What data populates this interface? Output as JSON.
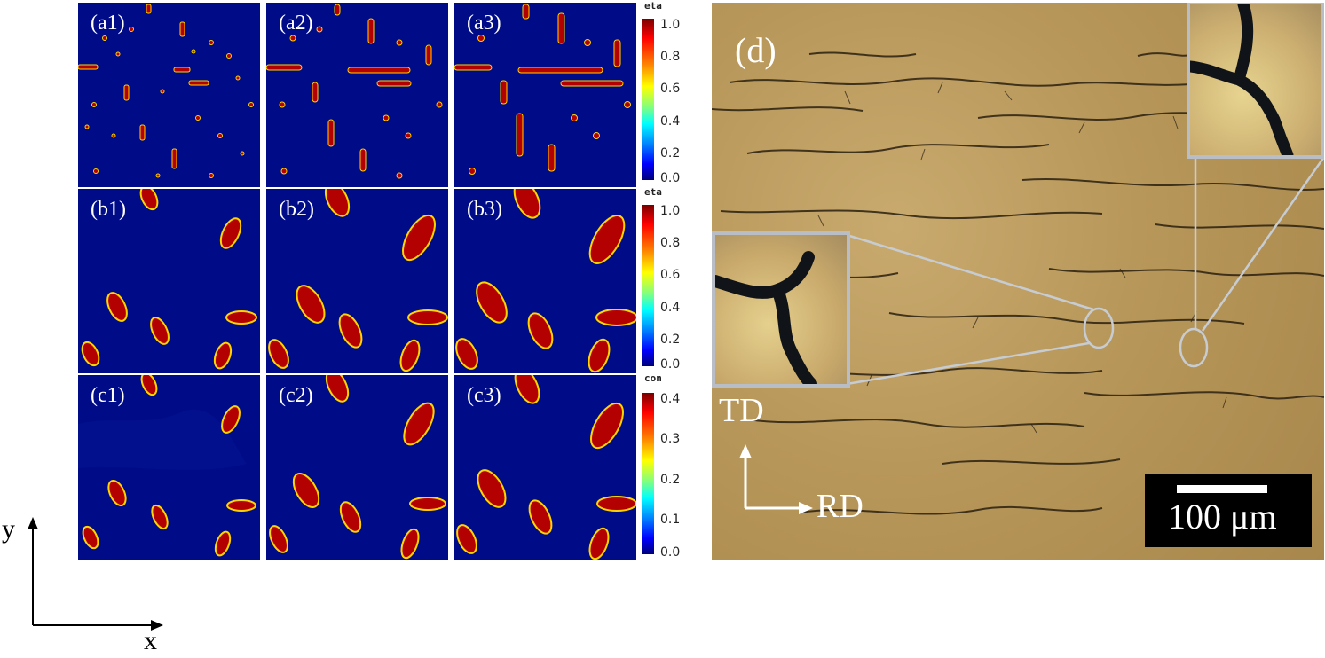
{
  "panels": {
    "a1": "(a1)",
    "a2": "(a2)",
    "a3": "(a3)",
    "b1": "(b1)",
    "b2": "(b2)",
    "b3": "(b3)",
    "c1": "(c1)",
    "c2": "(c2)",
    "c3": "(c3)"
  },
  "colorbars": [
    {
      "title": "eta",
      "ticks": [
        "1.0",
        "0.8",
        "0.6",
        "0.4",
        "0.2",
        "0.0"
      ]
    },
    {
      "title": "eta",
      "ticks": [
        "1.0",
        "0.8",
        "0.6",
        "0.4",
        "0.2",
        "0.0"
      ]
    },
    {
      "title": "con",
      "ticks": [
        "0.4",
        "0.3",
        "0.2",
        "0.1",
        "0.0"
      ]
    }
  ],
  "micrograph": {
    "label": "(d)",
    "direction_td": "TD",
    "direction_rd": "RD",
    "scale_bar": "100 μm"
  },
  "axes": {
    "x": "x",
    "y": "y"
  },
  "colors": {
    "matrix": "#000b87",
    "precipitate": "#b30000",
    "rim": "#ffd400",
    "photo": "#b8975a"
  }
}
